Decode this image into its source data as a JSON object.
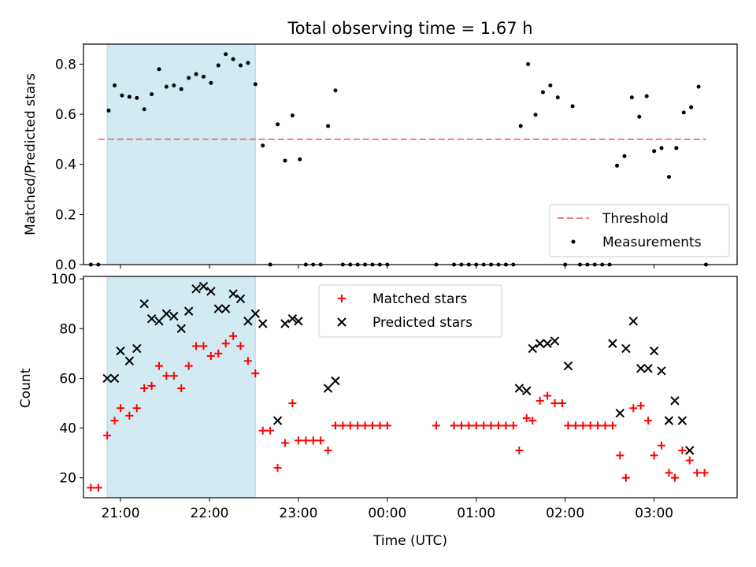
{
  "figure": {
    "title": "Total observing time = 1.67 h",
    "shaded_region_color": "#add8e6"
  },
  "chart_data": [
    {
      "type": "scatter",
      "panel": "top",
      "ylabel": "Matched/Predicted stars",
      "xlabel": "",
      "xlim": [
        "20:35",
        "03:56"
      ],
      "ylim": [
        0,
        0.88
      ],
      "yticks": [
        0.0,
        0.2,
        0.4,
        0.6,
        0.8
      ],
      "ytick_labels": [
        "0.0",
        "0.2",
        "0.4",
        "0.6",
        "0.8"
      ],
      "shaded_span": [
        "20:51",
        "22:31"
      ],
      "threshold": {
        "name": "Threshold",
        "value": 0.5,
        "x_range": [
          "20:45",
          "03:35"
        ],
        "color": "#f08080",
        "style": "dashed"
      },
      "legend": {
        "position": "lower-right",
        "entries": [
          "Threshold",
          "Measurements"
        ]
      },
      "series": [
        {
          "name": "Measurements",
          "color": "#000000",
          "marker": "dot",
          "points": [
            [
              "20:40",
              0.0
            ],
            [
              "20:45",
              0.0
            ],
            [
              "20:52",
              0.615
            ],
            [
              "20:56",
              0.715
            ],
            [
              "21:01",
              0.675
            ],
            [
              "21:06",
              0.67
            ],
            [
              "21:11",
              0.665
            ],
            [
              "21:16",
              0.62
            ],
            [
              "21:21",
              0.68
            ],
            [
              "21:26",
              0.78
            ],
            [
              "21:31",
              0.71
            ],
            [
              "21:36",
              0.715
            ],
            [
              "21:41",
              0.7
            ],
            [
              "21:46",
              0.745
            ],
            [
              "21:51",
              0.76
            ],
            [
              "21:56",
              0.75
            ],
            [
              "22:01",
              0.725
            ],
            [
              "22:06",
              0.795
            ],
            [
              "22:11",
              0.84
            ],
            [
              "22:16",
              0.82
            ],
            [
              "22:21",
              0.795
            ],
            [
              "22:26",
              0.805
            ],
            [
              "22:31",
              0.72
            ],
            [
              "22:36",
              0.475
            ],
            [
              "22:41",
              0.0
            ],
            [
              "22:46",
              0.56
            ],
            [
              "22:51",
              0.415
            ],
            [
              "22:56",
              0.595
            ],
            [
              "23:01",
              0.42
            ],
            [
              "23:05",
              0.0
            ],
            [
              "23:10",
              0.0
            ],
            [
              "23:15",
              0.0
            ],
            [
              "23:20",
              0.553
            ],
            [
              "23:25",
              0.695
            ],
            [
              "23:30",
              0.0
            ],
            [
              "23:35",
              0.0
            ],
            [
              "23:40",
              0.0
            ],
            [
              "23:45",
              0.0
            ],
            [
              "23:50",
              0.0
            ],
            [
              "23:55",
              0.0
            ],
            [
              "00:00",
              0.0
            ],
            [
              "00:33",
              0.0
            ],
            [
              "00:45",
              0.0
            ],
            [
              "00:50",
              0.0
            ],
            [
              "00:55",
              0.0
            ],
            [
              "01:00",
              0.0
            ],
            [
              "01:05",
              0.0
            ],
            [
              "01:10",
              0.0
            ],
            [
              "01:15",
              0.0
            ],
            [
              "01:20",
              0.0
            ],
            [
              "01:25",
              0.0
            ],
            [
              "01:30",
              0.553
            ],
            [
              "01:35",
              0.8
            ],
            [
              "01:40",
              0.598
            ],
            [
              "01:45",
              0.688
            ],
            [
              "01:50",
              0.715
            ],
            [
              "01:55",
              0.667
            ],
            [
              "02:00",
              0.0
            ],
            [
              "02:05",
              0.632
            ],
            [
              "02:10",
              0.0
            ],
            [
              "02:15",
              0.0
            ],
            [
              "02:20",
              0.0
            ],
            [
              "02:25",
              0.0
            ],
            [
              "02:30",
              0.0
            ],
            [
              "02:35",
              0.395
            ],
            [
              "02:40",
              0.433
            ],
            [
              "02:45",
              0.667
            ],
            [
              "02:50",
              0.59
            ],
            [
              "02:55",
              0.672
            ],
            [
              "03:00",
              0.453
            ],
            [
              "03:05",
              0.465
            ],
            [
              "03:10",
              0.35
            ],
            [
              "03:15",
              0.465
            ],
            [
              "03:20",
              0.607
            ],
            [
              "03:25",
              0.628
            ],
            [
              "03:30",
              0.71
            ],
            [
              "03:35",
              0.0
            ]
          ]
        }
      ]
    },
    {
      "type": "scatter",
      "panel": "bottom",
      "ylabel": "Count",
      "xlabel": "Time (UTC)",
      "xlim": [
        "20:35",
        "03:56"
      ],
      "ylim": [
        12,
        101
      ],
      "yticks": [
        20,
        40,
        60,
        80,
        100
      ],
      "ytick_labels": [
        "20",
        "40",
        "60",
        "80",
        "100"
      ],
      "xticks": [
        "21:00",
        "22:00",
        "23:00",
        "00:00",
        "01:00",
        "02:00",
        "03:00"
      ],
      "shaded_span": [
        "20:51",
        "22:31"
      ],
      "legend": {
        "position": "top-center",
        "entries": [
          "Matched stars",
          "Predicted stars"
        ]
      },
      "series": [
        {
          "name": "Matched stars",
          "color": "#ff0000",
          "marker": "plus",
          "points": [
            [
              "20:40",
              16
            ],
            [
              "20:45",
              16
            ],
            [
              "20:51",
              37
            ],
            [
              "20:56",
              43
            ],
            [
              "21:00",
              48
            ],
            [
              "21:06",
              45
            ],
            [
              "21:11",
              48
            ],
            [
              "21:16",
              56
            ],
            [
              "21:21",
              57
            ],
            [
              "21:26",
              65
            ],
            [
              "21:31",
              61
            ],
            [
              "21:36",
              61
            ],
            [
              "21:41",
              56
            ],
            [
              "21:46",
              65
            ],
            [
              "21:51",
              73
            ],
            [
              "21:56",
              73
            ],
            [
              "22:01",
              69
            ],
            [
              "22:06",
              70
            ],
            [
              "22:11",
              74
            ],
            [
              "22:16",
              77
            ],
            [
              "22:21",
              73
            ],
            [
              "22:26",
              67
            ],
            [
              "22:31",
              62
            ],
            [
              "22:36",
              39
            ],
            [
              "22:41",
              39
            ],
            [
              "22:46",
              24
            ],
            [
              "22:51",
              34
            ],
            [
              "22:56",
              50
            ],
            [
              "23:00",
              35
            ],
            [
              "23:05",
              35
            ],
            [
              "23:10",
              35
            ],
            [
              "23:15",
              35
            ],
            [
              "23:20",
              31
            ],
            [
              "23:25",
              41
            ],
            [
              "23:30",
              41
            ],
            [
              "23:35",
              41
            ],
            [
              "23:40",
              41
            ],
            [
              "23:45",
              41
            ],
            [
              "23:50",
              41
            ],
            [
              "23:55",
              41
            ],
            [
              "00:00",
              41
            ],
            [
              "00:33",
              41
            ],
            [
              "00:45",
              41
            ],
            [
              "00:50",
              41
            ],
            [
              "00:55",
              41
            ],
            [
              "01:00",
              41
            ],
            [
              "01:05",
              41
            ],
            [
              "01:10",
              41
            ],
            [
              "01:15",
              41
            ],
            [
              "01:20",
              41
            ],
            [
              "01:25",
              41
            ],
            [
              "01:29",
              31
            ],
            [
              "01:34",
              44
            ],
            [
              "01:38",
              43
            ],
            [
              "01:43",
              51
            ],
            [
              "01:48",
              53
            ],
            [
              "01:53",
              50
            ],
            [
              "01:58",
              50
            ],
            [
              "02:02",
              41
            ],
            [
              "02:07",
              41
            ],
            [
              "02:12",
              41
            ],
            [
              "02:17",
              41
            ],
            [
              "02:22",
              41
            ],
            [
              "02:27",
              41
            ],
            [
              "02:32",
              41
            ],
            [
              "02:37",
              29
            ],
            [
              "02:41",
              20
            ],
            [
              "02:46",
              48
            ],
            [
              "02:51",
              49
            ],
            [
              "02:56",
              43
            ],
            [
              "03:00",
              29
            ],
            [
              "03:05",
              33
            ],
            [
              "03:10",
              22
            ],
            [
              "03:14",
              20
            ],
            [
              "03:19",
              31
            ],
            [
              "03:24",
              27
            ],
            [
              "03:29",
              22
            ],
            [
              "03:34",
              22
            ]
          ]
        },
        {
          "name": "Predicted stars",
          "color": "#000000",
          "marker": "x",
          "points": [
            [
              "20:51",
              60
            ],
            [
              "20:56",
              60
            ],
            [
              "21:00",
              71
            ],
            [
              "21:06",
              67
            ],
            [
              "21:11",
              72
            ],
            [
              "21:16",
              90
            ],
            [
              "21:21",
              84
            ],
            [
              "21:26",
              83
            ],
            [
              "21:31",
              86
            ],
            [
              "21:36",
              85
            ],
            [
              "21:41",
              80
            ],
            [
              "21:46",
              87
            ],
            [
              "21:51",
              96
            ],
            [
              "21:56",
              97
            ],
            [
              "22:01",
              95
            ],
            [
              "22:06",
              88
            ],
            [
              "22:11",
              88
            ],
            [
              "22:16",
              94
            ],
            [
              "22:21",
              92
            ],
            [
              "22:26",
              83
            ],
            [
              "22:31",
              86
            ],
            [
              "22:36",
              82
            ],
            [
              "22:46",
              43
            ],
            [
              "22:51",
              82
            ],
            [
              "22:56",
              84
            ],
            [
              "23:00",
              83
            ],
            [
              "23:20",
              56
            ],
            [
              "23:25",
              59
            ],
            [
              "01:29",
              56
            ],
            [
              "01:34",
              55
            ],
            [
              "01:38",
              72
            ],
            [
              "01:43",
              74
            ],
            [
              "01:48",
              74
            ],
            [
              "01:53",
              75
            ],
            [
              "02:02",
              65
            ],
            [
              "02:32",
              74
            ],
            [
              "02:37",
              46
            ],
            [
              "02:41",
              72
            ],
            [
              "02:46",
              83
            ],
            [
              "02:51",
              64
            ],
            [
              "02:56",
              64
            ],
            [
              "03:00",
              71
            ],
            [
              "03:05",
              63
            ],
            [
              "03:10",
              43
            ],
            [
              "03:14",
              51
            ],
            [
              "03:19",
              43
            ],
            [
              "03:24",
              31
            ]
          ]
        }
      ]
    }
  ]
}
